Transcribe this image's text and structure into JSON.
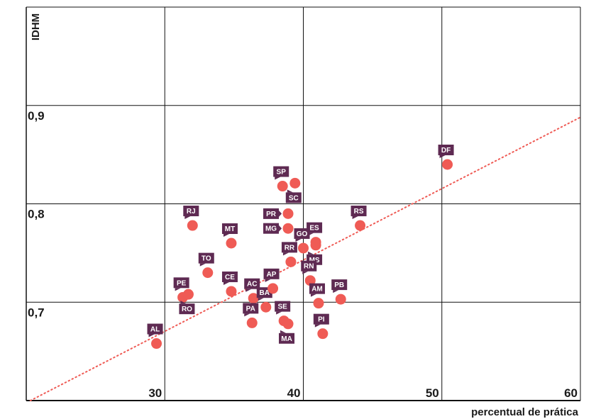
{
  "chart_data": {
    "type": "scatter",
    "xlabel": "percentual de prática",
    "ylabel": "IDHM",
    "xlim": [
      20,
      60
    ],
    "ylim": [
      0.6,
      1.0
    ],
    "x_ticks": [
      30,
      40,
      50,
      60
    ],
    "y_ticks": [
      0.7,
      0.8,
      0.9
    ],
    "x_tick_labels": [
      "30",
      "40",
      "50",
      "60"
    ],
    "y_tick_labels": [
      "0,7",
      "0,8",
      "0,9"
    ],
    "grid": true,
    "trendline": {
      "style": "dotted",
      "x": [
        20.3,
        60
      ],
      "y": [
        0.6,
        0.888
      ]
    },
    "colors": {
      "point": "#ef5b55",
      "label_bg": "#5e2a52",
      "label_text": "#ffffff",
      "trendline": "#ef5b55",
      "grid": "#111111"
    },
    "points": [
      {
        "label": "AL",
        "x": 29.4,
        "y": 0.658,
        "pos": "above"
      },
      {
        "label": "PE",
        "x": 31.3,
        "y": 0.705,
        "pos": "above"
      },
      {
        "label": "RO",
        "x": 31.7,
        "y": 0.708,
        "pos": "below"
      },
      {
        "label": "RJ",
        "x": 32.0,
        "y": 0.778,
        "pos": "above"
      },
      {
        "label": "TO",
        "x": 33.1,
        "y": 0.73,
        "pos": "above"
      },
      {
        "label": "MT",
        "x": 34.8,
        "y": 0.76,
        "pos": "above"
      },
      {
        "label": "CE",
        "x": 34.8,
        "y": 0.711,
        "pos": "above"
      },
      {
        "label": "AC",
        "x": 36.4,
        "y": 0.704,
        "pos": "above"
      },
      {
        "label": "PA",
        "x": 36.3,
        "y": 0.679,
        "pos": "above"
      },
      {
        "label": "BA",
        "x": 37.3,
        "y": 0.695,
        "pos": "above"
      },
      {
        "label": "AP",
        "x": 37.8,
        "y": 0.714,
        "pos": "above"
      },
      {
        "label": "SP",
        "x": 38.5,
        "y": 0.818,
        "pos": "above"
      },
      {
        "label": "SC",
        "x": 39.4,
        "y": 0.821,
        "pos": "below"
      },
      {
        "label": "PR",
        "x": 38.9,
        "y": 0.79,
        "pos": "left"
      },
      {
        "label": "MG",
        "x": 38.9,
        "y": 0.775,
        "pos": "left"
      },
      {
        "label": "SE",
        "x": 38.6,
        "y": 0.681,
        "pos": "above"
      },
      {
        "label": "MA",
        "x": 38.9,
        "y": 0.678,
        "pos": "below"
      },
      {
        "label": "RR",
        "x": 39.1,
        "y": 0.741,
        "pos": "above"
      },
      {
        "label": "ES",
        "x": 40.9,
        "y": 0.761,
        "pos": "above"
      },
      {
        "label": "GO",
        "x": 40.0,
        "y": 0.755,
        "pos": "above"
      },
      {
        "label": "MS",
        "x": 40.9,
        "y": 0.758,
        "pos": "below"
      },
      {
        "label": "RN",
        "x": 40.5,
        "y": 0.722,
        "pos": "above"
      },
      {
        "label": "AM",
        "x": 41.1,
        "y": 0.699,
        "pos": "above"
      },
      {
        "label": "PI",
        "x": 41.4,
        "y": 0.668,
        "pos": "above"
      },
      {
        "label": "PB",
        "x": 42.7,
        "y": 0.703,
        "pos": "above"
      },
      {
        "label": "RS",
        "x": 44.1,
        "y": 0.778,
        "pos": "above"
      },
      {
        "label": "DF",
        "x": 50.4,
        "y": 0.84,
        "pos": "above"
      }
    ]
  }
}
